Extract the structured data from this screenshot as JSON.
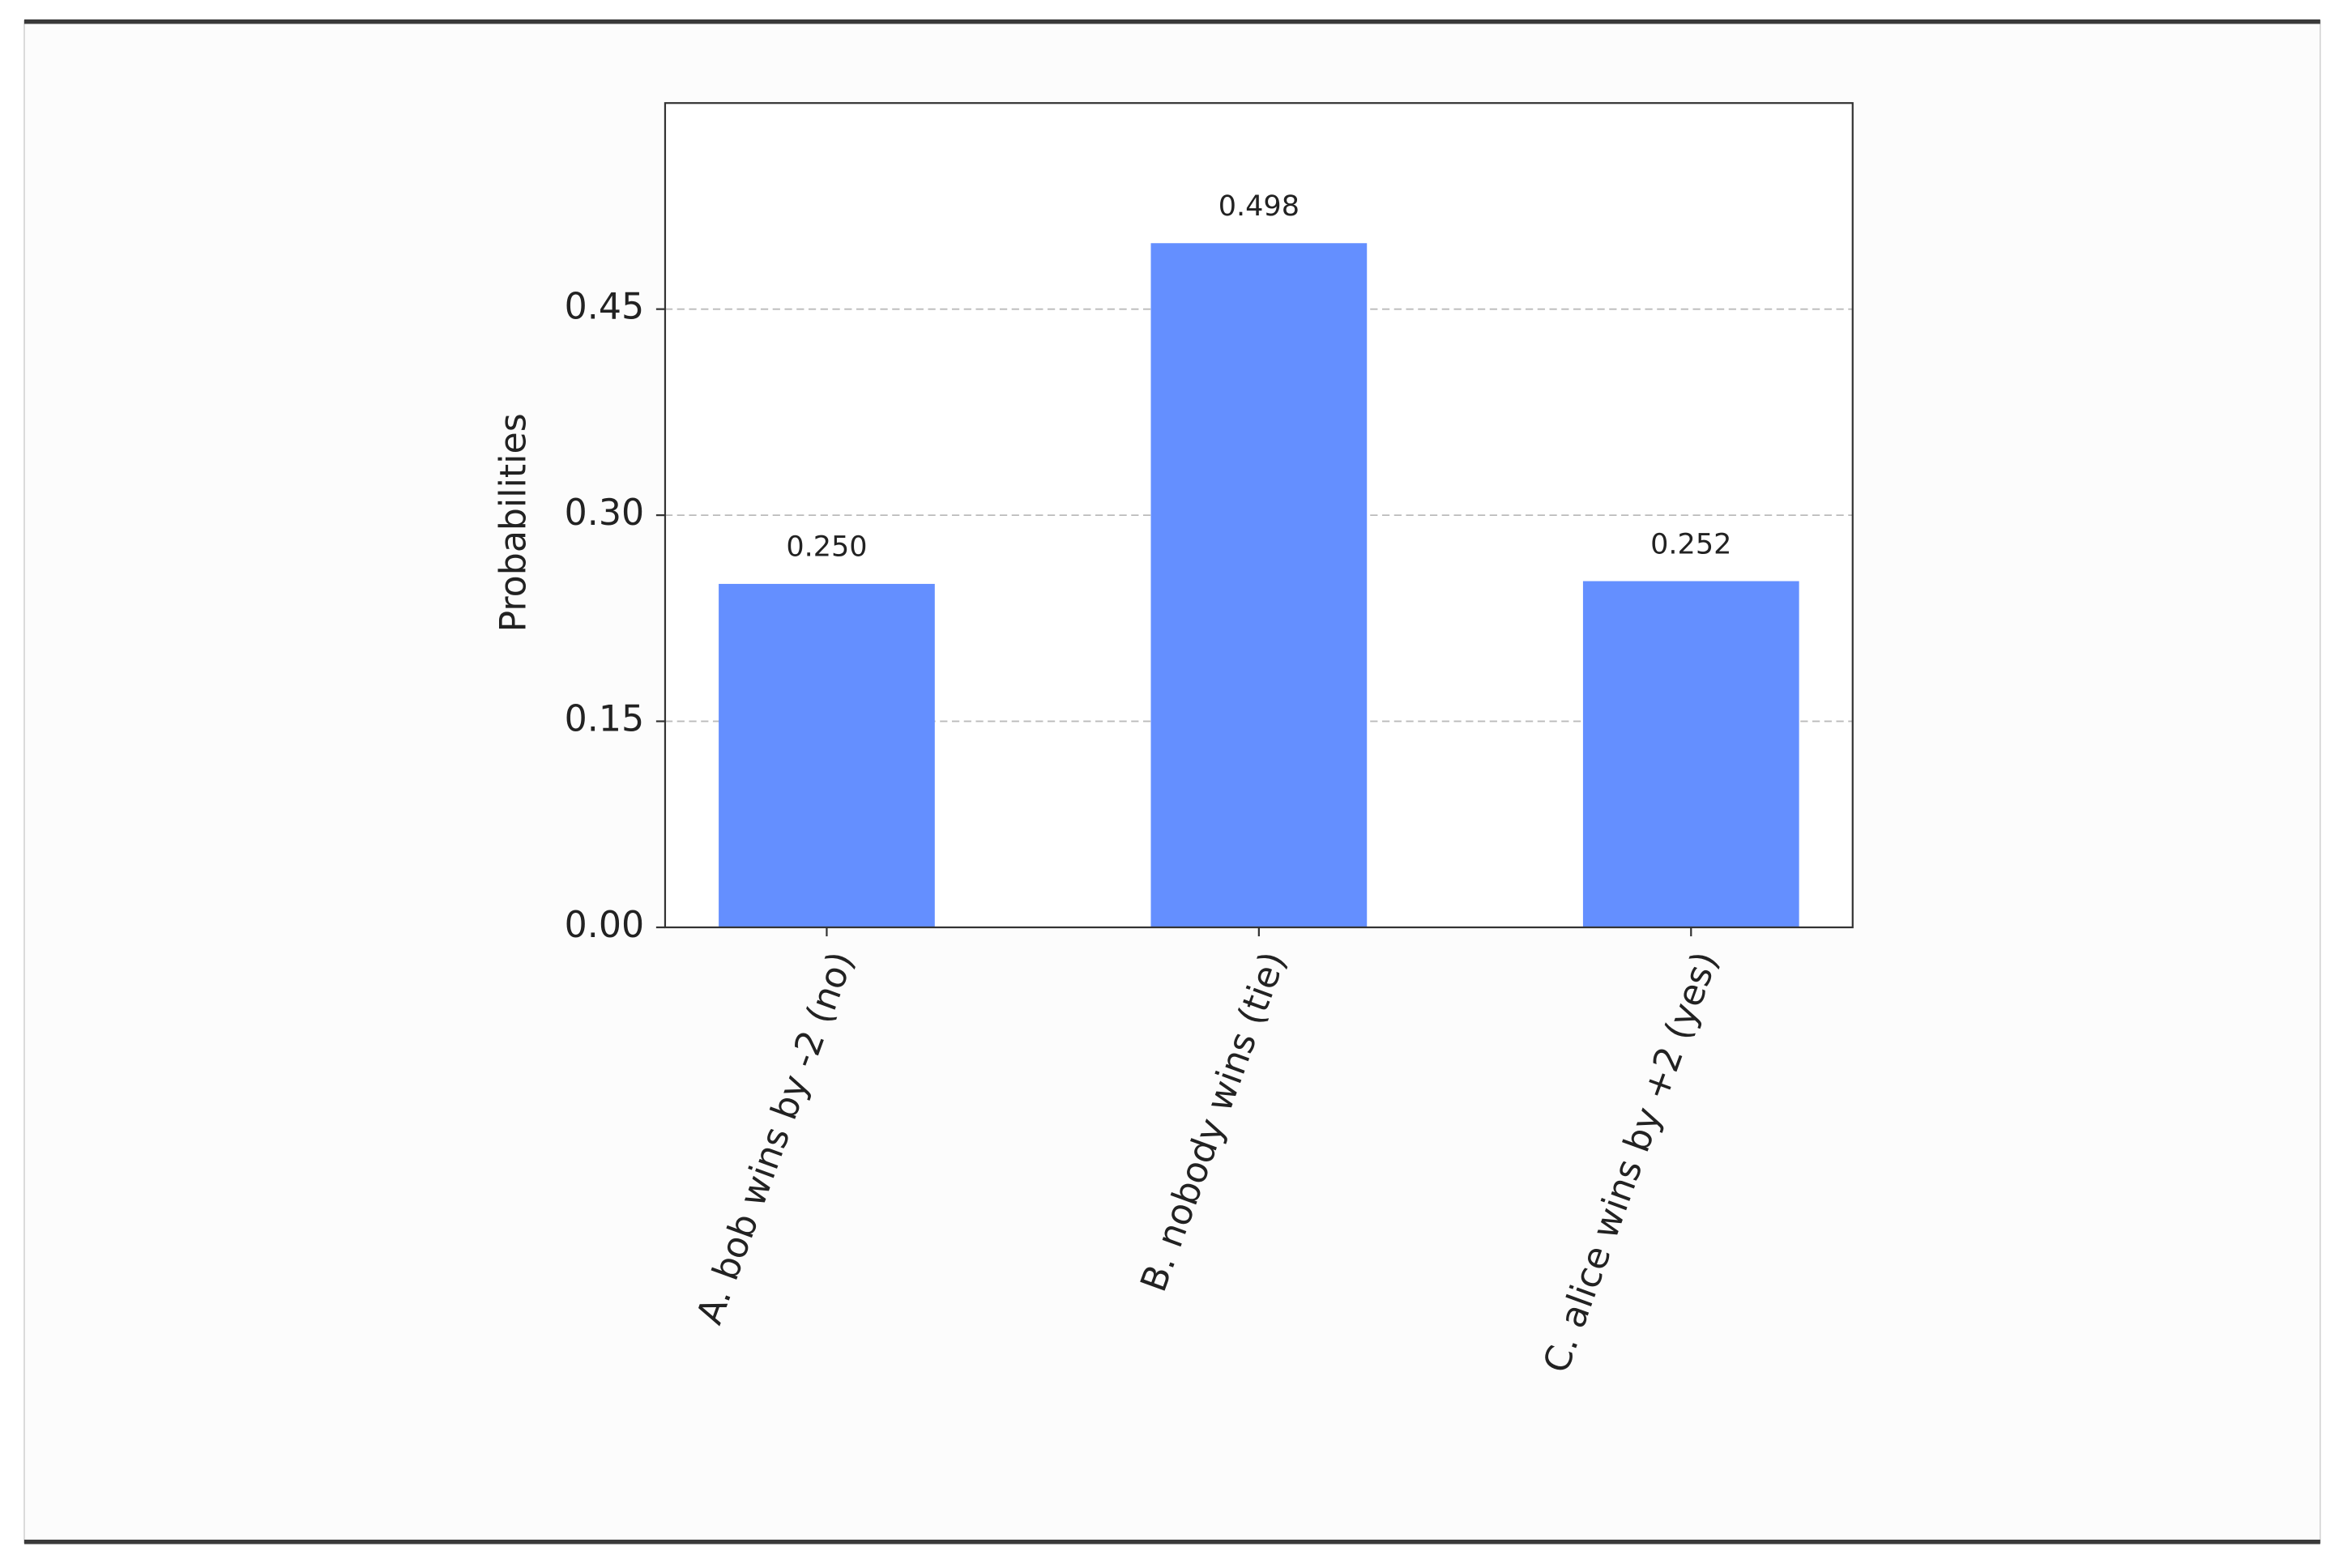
{
  "chart_data": {
    "type": "bar",
    "y_label": "Probabilities",
    "categories": [
      "A. bob wins by -2 (no)",
      "B. nobody wins (tie)",
      "C. alice wins by +2 (yes)"
    ],
    "values": [
      0.25,
      0.498,
      0.252
    ],
    "value_labels": [
      "0.250",
      "0.498",
      "0.252"
    ],
    "color": "#648fff",
    "ylim": [
      0,
      0.6
    ],
    "yticks": [
      {
        "value": 0,
        "label": "0.00"
      },
      {
        "value": 0.15,
        "label": "0.15"
      },
      {
        "value": 0.3,
        "label": "0.30"
      },
      {
        "value": 0.45,
        "label": "0.45"
      }
    ],
    "grid": true
  }
}
